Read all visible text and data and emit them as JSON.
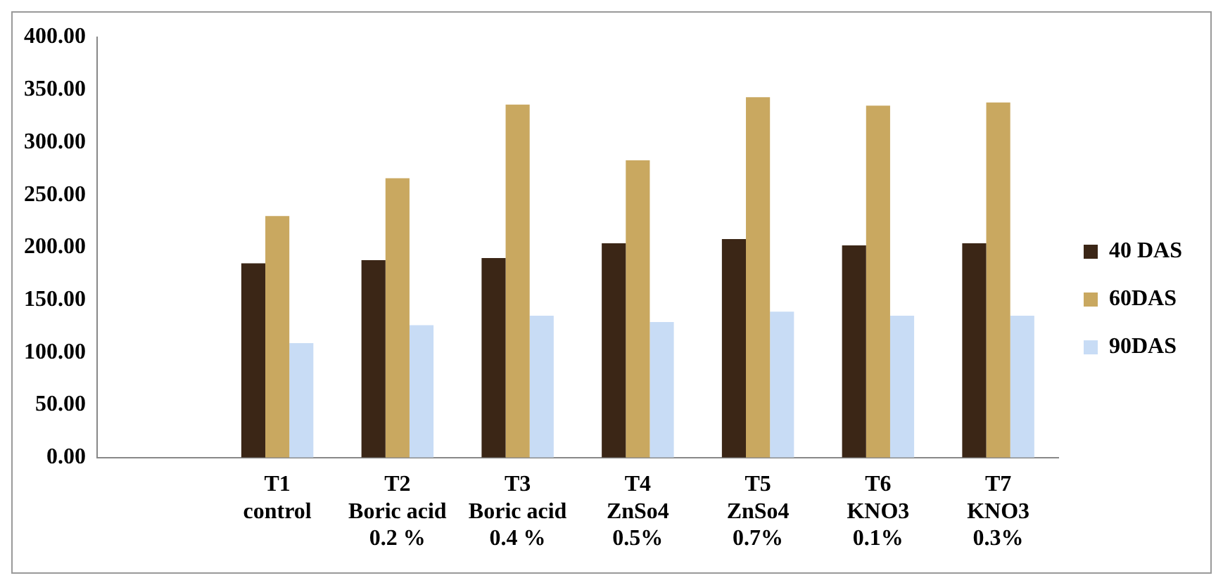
{
  "chart_data": {
    "type": "bar",
    "categories": [
      null,
      "T1\ncontrol",
      "T2\nBoric acid\n0.2 %",
      "T3\nBoric acid\n0.4 %",
      "T4\nZnSo4\n0.5%",
      "T5\nZnSo4\n0.7%",
      "T6\nKNO3\n0.1%",
      "T7\nKNO3\n0.3%"
    ],
    "series": [
      {
        "name": "40 DAS",
        "color": "#3b2616",
        "values": [
          null,
          185,
          188,
          190,
          204,
          208,
          202,
          204
        ]
      },
      {
        "name": "60DAS",
        "color": "#c9a860",
        "values": [
          null,
          230,
          266,
          336,
          283,
          343,
          335,
          338
        ]
      },
      {
        "name": "90DAS",
        "color": "#c8dcf5",
        "values": [
          null,
          109,
          126,
          135,
          129,
          139,
          135,
          135
        ]
      }
    ],
    "ylim": [
      0,
      400
    ],
    "yticks": [
      {
        "value": 0,
        "label": "0.00"
      },
      {
        "value": 50,
        "label": "50.00"
      },
      {
        "value": 100,
        "label": "100.00"
      },
      {
        "value": 150,
        "label": "150.00"
      },
      {
        "value": 200,
        "label": "200.00"
      },
      {
        "value": 250,
        "label": "250.00"
      },
      {
        "value": 300,
        "label": "300.00"
      },
      {
        "value": 350,
        "label": "350.00"
      },
      {
        "value": 400,
        "label": "400.00"
      }
    ],
    "grid": false,
    "legend": "right"
  }
}
